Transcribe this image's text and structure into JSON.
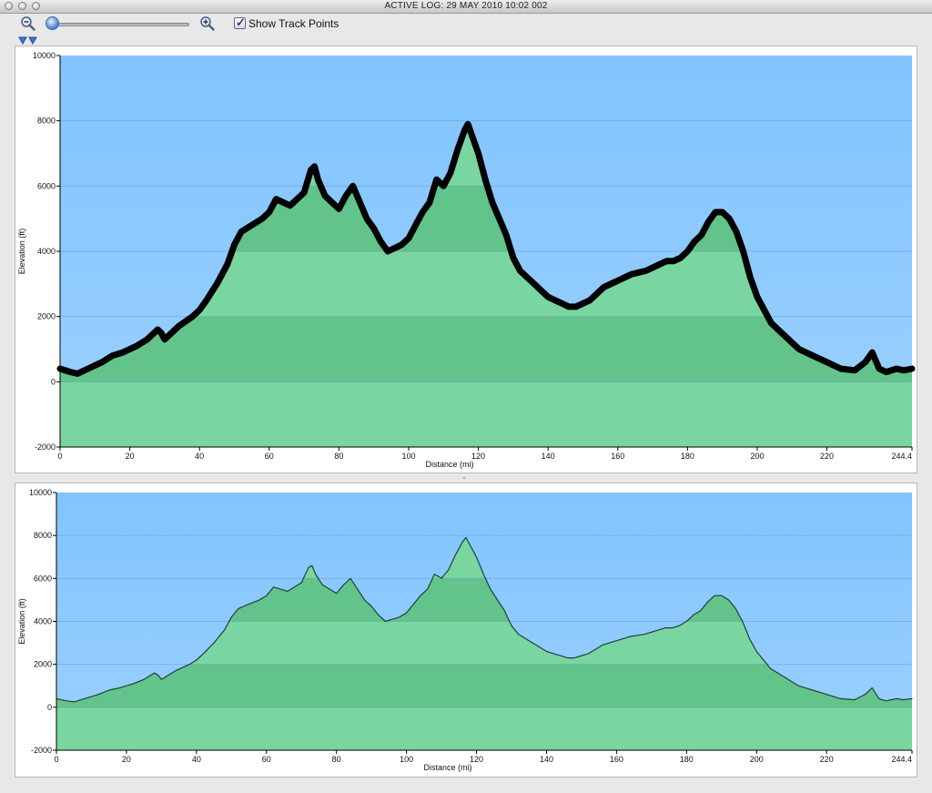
{
  "window": {
    "title": "ACTIVE LOG: 29 MAY 2010 10:02 002"
  },
  "toolbar": {
    "zoom_out_icon": "zoom-out-icon",
    "zoom_in_icon": "zoom-in-icon",
    "zoom_slider_value": 0.0,
    "show_track_points_label": "Show Track Points",
    "show_track_points_checked": true
  },
  "colors": {
    "sky_top": "#80c4ff",
    "sky_bottom": "#9cd0ff",
    "terrain_light": "#79d6a0",
    "terrain_dark": "#62c48a",
    "profile_main": "#000000",
    "profile_overview": "#1f3f3a"
  },
  "chart_data": [
    {
      "type": "area",
      "xlabel": "Distance   (mi)",
      "ylabel": "Elevation (ft)",
      "xlim": [
        0,
        244.4
      ],
      "ylim": [
        -2000,
        10000
      ],
      "x_ticks": [
        "0",
        "20",
        "40",
        "60",
        "80",
        "100",
        "120",
        "140",
        "160",
        "180",
        "200",
        "220",
        "244.4"
      ],
      "y_ticks": [
        "10000",
        "8000",
        "6000",
        "4000",
        "2000",
        "0",
        "-2000"
      ],
      "show_track_points": true,
      "series": [
        {
          "x": [
            0,
            3,
            5,
            8,
            12,
            15,
            18,
            22,
            25,
            28,
            29,
            30,
            32,
            34,
            36,
            38,
            40,
            42,
            45,
            48,
            50,
            52,
            55,
            58,
            60,
            62,
            64,
            66,
            68,
            70,
            72,
            73,
            74,
            76,
            78,
            80,
            82,
            84,
            86,
            88,
            90,
            92,
            94,
            96,
            98,
            100,
            102,
            104,
            106,
            108,
            110,
            112,
            114,
            116,
            117,
            118,
            120,
            122,
            124,
            126,
            128,
            130,
            132,
            134,
            136,
            138,
            140,
            142,
            144,
            146,
            148,
            150,
            152,
            154,
            156,
            158,
            160,
            162,
            164,
            166,
            168,
            170,
            172,
            174,
            176,
            178,
            180,
            182,
            184,
            186,
            188,
            190,
            192,
            194,
            196,
            198,
            200,
            204,
            208,
            212,
            216,
            220,
            224,
            228,
            231,
            233,
            235,
            237,
            240,
            242,
            244.4
          ],
          "values": [
            400,
            300,
            250,
            400,
            600,
            800,
            900,
            1100,
            1300,
            1600,
            1500,
            1300,
            1500,
            1700,
            1850,
            2000,
            2200,
            2500,
            3000,
            3600,
            4200,
            4600,
            4800,
            5000,
            5200,
            5600,
            5500,
            5400,
            5600,
            5800,
            6500,
            6600,
            6200,
            5700,
            5500,
            5300,
            5700,
            6000,
            5500,
            5000,
            4700,
            4300,
            4000,
            4100,
            4200,
            4400,
            4800,
            5200,
            5500,
            6200,
            6000,
            6400,
            7100,
            7700,
            7900,
            7600,
            7000,
            6200,
            5500,
            5000,
            4500,
            3800,
            3400,
            3200,
            3000,
            2800,
            2600,
            2500,
            2400,
            2300,
            2300,
            2400,
            2500,
            2700,
            2900,
            3000,
            3100,
            3200,
            3300,
            3350,
            3400,
            3500,
            3600,
            3700,
            3700,
            3800,
            4000,
            4300,
            4500,
            4900,
            5200,
            5200,
            5000,
            4600,
            4000,
            3200,
            2600,
            1800,
            1400,
            1000,
            800,
            600,
            400,
            350,
            600,
            900,
            400,
            300,
            400,
            350,
            400
          ]
        }
      ]
    },
    {
      "type": "area",
      "xlabel": "Distance   (mi)",
      "ylabel": "Elevation (ft)",
      "xlim": [
        0,
        244.4
      ],
      "ylim": [
        -2000,
        10000
      ],
      "x_ticks": [
        "0",
        "20",
        "40",
        "60",
        "80",
        "100",
        "120",
        "140",
        "160",
        "180",
        "200",
        "220",
        "244.4"
      ],
      "y_ticks": [
        "10000",
        "8000",
        "6000",
        "4000",
        "2000",
        "0",
        "-2000"
      ],
      "series": [
        {
          "same_as": "chart_data.0.series.0"
        }
      ]
    }
  ]
}
